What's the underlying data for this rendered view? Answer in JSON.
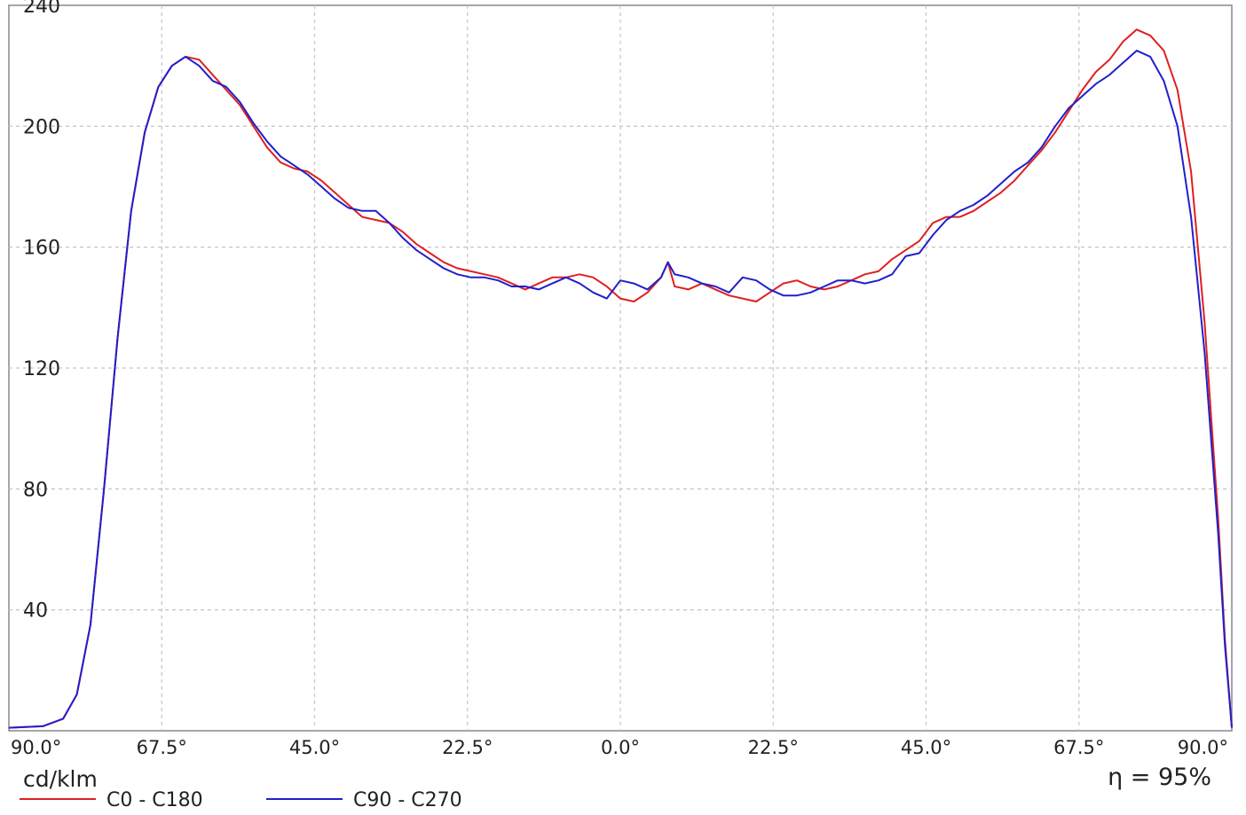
{
  "chart_data": {
    "type": "line",
    "title": "",
    "ylabel": "cd/klm",
    "annotation": "η = 95%",
    "ylim": [
      0,
      240
    ],
    "xlim": [
      -90,
      90
    ],
    "grid": true,
    "legend_position": "bottom-left",
    "y_ticks": [
      {
        "value": 40,
        "label": "40"
      },
      {
        "value": 80,
        "label": "80"
      },
      {
        "value": 120,
        "label": "120"
      },
      {
        "value": 160,
        "label": "160"
      },
      {
        "value": 200,
        "label": "200"
      },
      {
        "value": 240,
        "label": "240"
      }
    ],
    "x_ticks": [
      {
        "value": -90,
        "label": "90.0°"
      },
      {
        "value": -67.5,
        "label": "67.5°"
      },
      {
        "value": -45,
        "label": "45.0°"
      },
      {
        "value": -22.5,
        "label": "22.5°"
      },
      {
        "value": 0,
        "label": "0.0°"
      },
      {
        "value": 22.5,
        "label": "22.5°"
      },
      {
        "value": 45,
        "label": "45.0°"
      },
      {
        "value": 67.5,
        "label": "67.5°"
      },
      {
        "value": 90,
        "label": "90.0°"
      }
    ],
    "series": [
      {
        "name": "C0 - C180",
        "color": "#e02020",
        "points": [
          [
            -90,
            1
          ],
          [
            -85,
            1.5
          ],
          [
            -82,
            4
          ],
          [
            -80,
            12
          ],
          [
            -78,
            35
          ],
          [
            -76,
            80
          ],
          [
            -74,
            130
          ],
          [
            -72,
            172
          ],
          [
            -70,
            198
          ],
          [
            -68,
            213
          ],
          [
            -66,
            220
          ],
          [
            -64,
            223
          ],
          [
            -62,
            222
          ],
          [
            -60,
            217
          ],
          [
            -58,
            212
          ],
          [
            -56,
            207
          ],
          [
            -54,
            200
          ],
          [
            -52,
            193
          ],
          [
            -50,
            188
          ],
          [
            -48,
            186
          ],
          [
            -46,
            185
          ],
          [
            -44,
            182
          ],
          [
            -42,
            178
          ],
          [
            -40,
            174
          ],
          [
            -38,
            170
          ],
          [
            -36,
            169
          ],
          [
            -34,
            168
          ],
          [
            -32,
            165
          ],
          [
            -30,
            161
          ],
          [
            -28,
            158
          ],
          [
            -26,
            155
          ],
          [
            -24,
            153
          ],
          [
            -22,
            152
          ],
          [
            -20,
            151
          ],
          [
            -18,
            150
          ],
          [
            -16,
            148
          ],
          [
            -14,
            146
          ],
          [
            -12,
            148
          ],
          [
            -10,
            150
          ],
          [
            -8,
            150
          ],
          [
            -6,
            151
          ],
          [
            -4,
            150
          ],
          [
            -2,
            147
          ],
          [
            0,
            143
          ],
          [
            2,
            142
          ],
          [
            4,
            145
          ],
          [
            6,
            150
          ],
          [
            7,
            155
          ],
          [
            8,
            147
          ],
          [
            10,
            146
          ],
          [
            12,
            148
          ],
          [
            14,
            146
          ],
          [
            16,
            144
          ],
          [
            18,
            143
          ],
          [
            20,
            142
          ],
          [
            22,
            145
          ],
          [
            24,
            148
          ],
          [
            26,
            149
          ],
          [
            28,
            147
          ],
          [
            30,
            146
          ],
          [
            32,
            147
          ],
          [
            34,
            149
          ],
          [
            36,
            151
          ],
          [
            38,
            152
          ],
          [
            40,
            156
          ],
          [
            42,
            159
          ],
          [
            44,
            162
          ],
          [
            46,
            168
          ],
          [
            48,
            170
          ],
          [
            50,
            170
          ],
          [
            52,
            172
          ],
          [
            54,
            175
          ],
          [
            56,
            178
          ],
          [
            58,
            182
          ],
          [
            60,
            187
          ],
          [
            62,
            192
          ],
          [
            64,
            198
          ],
          [
            66,
            205
          ],
          [
            68,
            212
          ],
          [
            70,
            218
          ],
          [
            72,
            222
          ],
          [
            74,
            228
          ],
          [
            76,
            232
          ],
          [
            78,
            230
          ],
          [
            80,
            225
          ],
          [
            82,
            212
          ],
          [
            84,
            185
          ],
          [
            86,
            135
          ],
          [
            88,
            70
          ],
          [
            89,
            30
          ],
          [
            90,
            1
          ]
        ]
      },
      {
        "name": "C90 - C270",
        "color": "#2020cc",
        "points": [
          [
            -90,
            1
          ],
          [
            -85,
            1.5
          ],
          [
            -82,
            4
          ],
          [
            -80,
            12
          ],
          [
            -78,
            35
          ],
          [
            -76,
            80
          ],
          [
            -74,
            130
          ],
          [
            -72,
            172
          ],
          [
            -70,
            198
          ],
          [
            -68,
            213
          ],
          [
            -66,
            220
          ],
          [
            -64,
            223
          ],
          [
            -62,
            220
          ],
          [
            -60,
            215
          ],
          [
            -58,
            213
          ],
          [
            -56,
            208
          ],
          [
            -54,
            201
          ],
          [
            -52,
            195
          ],
          [
            -50,
            190
          ],
          [
            -48,
            187
          ],
          [
            -46,
            184
          ],
          [
            -44,
            180
          ],
          [
            -42,
            176
          ],
          [
            -40,
            173
          ],
          [
            -38,
            172
          ],
          [
            -36,
            172
          ],
          [
            -34,
            168
          ],
          [
            -32,
            163
          ],
          [
            -30,
            159
          ],
          [
            -28,
            156
          ],
          [
            -26,
            153
          ],
          [
            -24,
            151
          ],
          [
            -22,
            150
          ],
          [
            -20,
            150
          ],
          [
            -18,
            149
          ],
          [
            -16,
            147
          ],
          [
            -14,
            147
          ],
          [
            -12,
            146
          ],
          [
            -10,
            148
          ],
          [
            -8,
            150
          ],
          [
            -6,
            148
          ],
          [
            -4,
            145
          ],
          [
            -2,
            143
          ],
          [
            0,
            149
          ],
          [
            2,
            148
          ],
          [
            4,
            146
          ],
          [
            6,
            150
          ],
          [
            7,
            155
          ],
          [
            8,
            151
          ],
          [
            10,
            150
          ],
          [
            12,
            148
          ],
          [
            14,
            147
          ],
          [
            16,
            145
          ],
          [
            18,
            150
          ],
          [
            20,
            149
          ],
          [
            22,
            146
          ],
          [
            24,
            144
          ],
          [
            26,
            144
          ],
          [
            28,
            145
          ],
          [
            30,
            147
          ],
          [
            32,
            149
          ],
          [
            34,
            149
          ],
          [
            36,
            148
          ],
          [
            38,
            149
          ],
          [
            40,
            151
          ],
          [
            42,
            157
          ],
          [
            44,
            158
          ],
          [
            46,
            164
          ],
          [
            48,
            169
          ],
          [
            50,
            172
          ],
          [
            52,
            174
          ],
          [
            54,
            177
          ],
          [
            56,
            181
          ],
          [
            58,
            185
          ],
          [
            60,
            188
          ],
          [
            62,
            193
          ],
          [
            64,
            200
          ],
          [
            66,
            206
          ],
          [
            68,
            210
          ],
          [
            70,
            214
          ],
          [
            72,
            217
          ],
          [
            74,
            221
          ],
          [
            76,
            225
          ],
          [
            78,
            223
          ],
          [
            80,
            215
          ],
          [
            82,
            200
          ],
          [
            84,
            170
          ],
          [
            86,
            125
          ],
          [
            88,
            65
          ],
          [
            89,
            28
          ],
          [
            90,
            1
          ]
        ]
      }
    ]
  }
}
